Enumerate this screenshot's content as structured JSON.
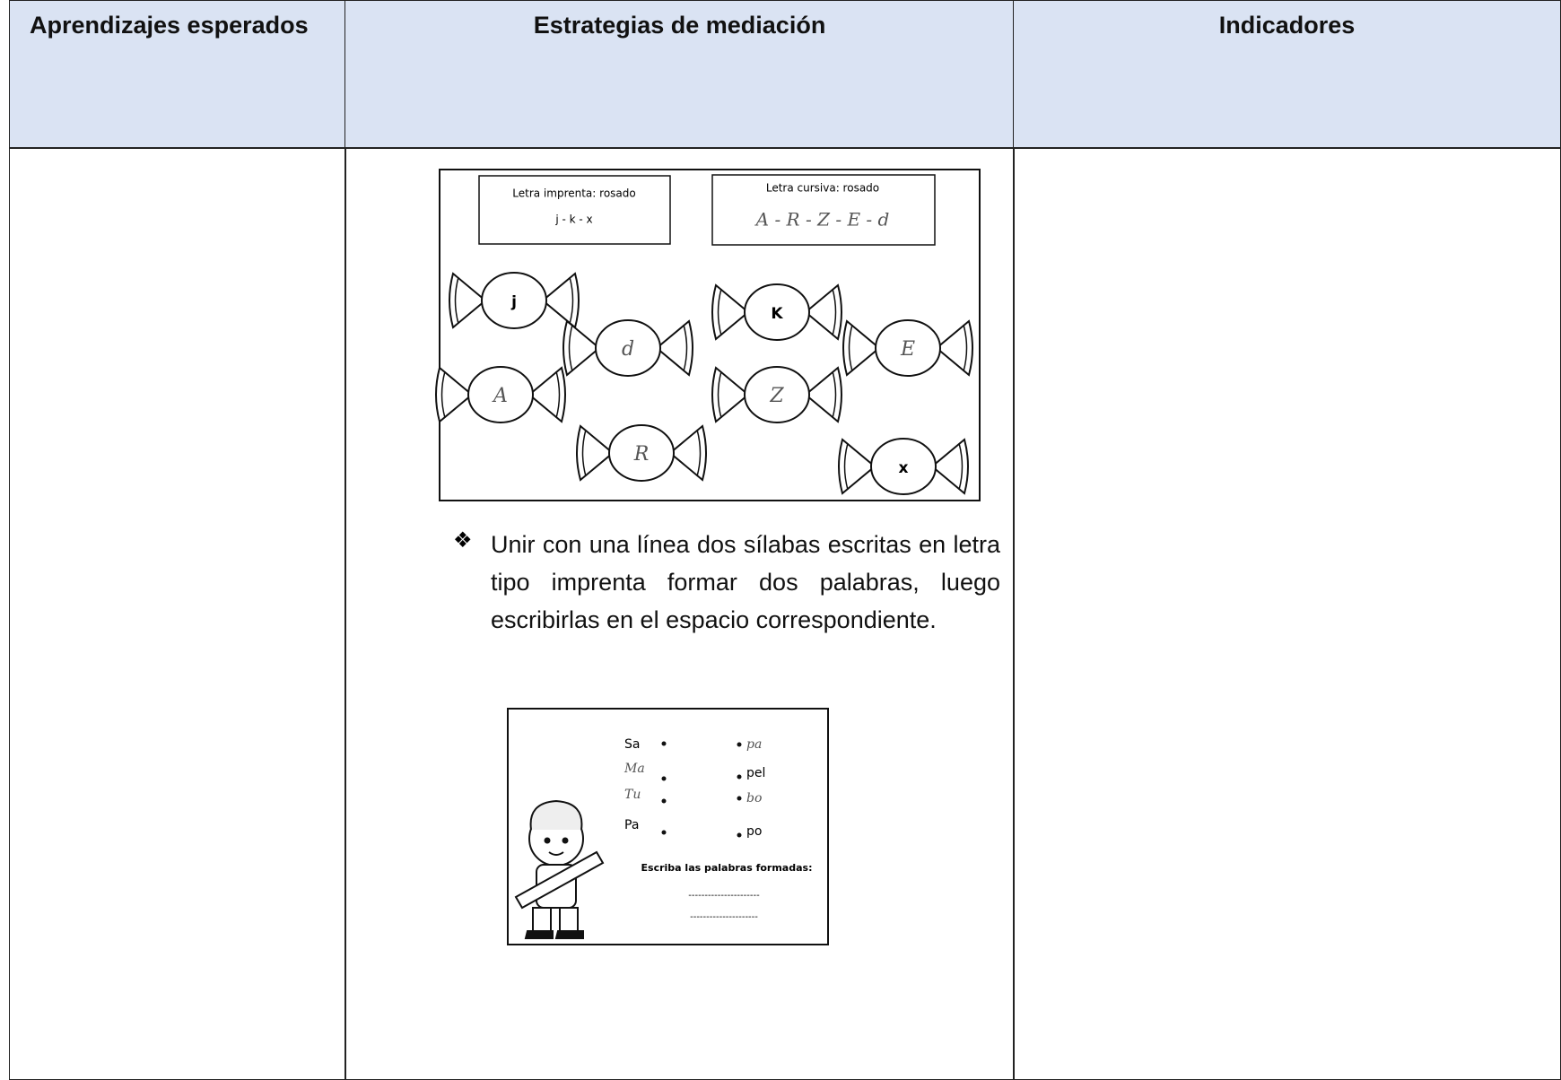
{
  "table": {
    "headers": [
      "Aprendizajes esperados",
      "Estrategias de mediación",
      "Indicadores"
    ],
    "strategy_cell": {
      "worksheet_1": {
        "box_1": {
          "title": "Letra imprenta: rosado",
          "letters": "j - k - x"
        },
        "box_2": {
          "title": "Letra cursiva: rosado",
          "letters": "A - R - Z - E - d"
        },
        "candies": [
          "j",
          "d",
          "A",
          "R",
          "K",
          "Z",
          "E",
          "x"
        ]
      },
      "bullet": "Unir con una línea dos sílabas escritas en letra tipo imprenta formar dos palabras, luego escribirlas en el espacio correspondiente.",
      "worksheet_2": {
        "left": [
          "Sa",
          "Ma",
          "Tu",
          "Pa"
        ],
        "right": [
          "pa",
          "pel",
          "bo",
          "po"
        ],
        "prompt": "Escriba las palabras formadas:",
        "answer_lines": [
          "----------------------",
          "---------------------"
        ]
      }
    }
  }
}
